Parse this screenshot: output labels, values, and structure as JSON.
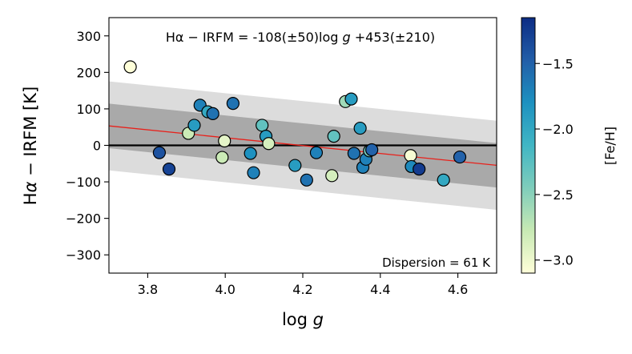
{
  "chart_data": {
    "type": "scatter",
    "title": "",
    "annotation": "Hα − IRFM = -108(±50)log g +453(±210)",
    "annotation_parts": [
      "Hα − IRFM = -108(±50)log ",
      "g",
      " +453(±210)"
    ],
    "dispersion_label": "Dispersion = 61 K",
    "xlabel": "log g",
    "xlabel_parts": [
      "log ",
      "g"
    ],
    "ylabel": "Hα − IRFM  [K]",
    "ylabel_parts": [
      "H",
      "α",
      " − IRFM  [K]"
    ],
    "colorbar_label": "[Fe/H]",
    "xlim": [
      3.7,
      4.7
    ],
    "ylim": [
      -350,
      350
    ],
    "xticks": [
      3.8,
      4.0,
      4.2,
      4.4,
      4.6
    ],
    "xtick_labels": [
      "3.8",
      "4.0",
      "4.2",
      "4.4",
      "4.6"
    ],
    "yticks": [
      -300,
      -200,
      -100,
      0,
      100,
      200,
      300
    ],
    "ytick_labels": [
      "−300",
      "−200",
      "−100",
      "0",
      "100",
      "200",
      "300"
    ],
    "colorbar_range": [
      -3.1,
      -1.15
    ],
    "colorbar_ticks": [
      -3.0,
      -2.5,
      -2.0,
      -1.5
    ],
    "colorbar_tick_labels": [
      "−3.0",
      "−2.5",
      "−2.0",
      "−1.5"
    ],
    "fit": {
      "slope": -108,
      "intercept": 453
    },
    "dispersion": 61,
    "bands": [
      {
        "name": "1-sigma",
        "halfwidth": 61,
        "color": "#a9a9a9"
      },
      {
        "name": "2-sigma",
        "halfwidth": 122,
        "color": "#dcdcdc"
      }
    ],
    "zero_line": 0,
    "fit_line_color": "#e8211b",
    "colormap": [
      "#ffffd9",
      "#c7e9b4",
      "#7fcdbb",
      "#41b6c4",
      "#1d91c0",
      "#225ea8",
      "#0c2c84"
    ],
    "points": [
      {
        "x": 3.755,
        "y": 215,
        "feh": -3.1
      },
      {
        "x": 3.83,
        "y": -20,
        "feh": -1.4
      },
      {
        "x": 3.855,
        "y": -65,
        "feh": -1.3
      },
      {
        "x": 3.905,
        "y": 33,
        "feh": -2.8
      },
      {
        "x": 3.92,
        "y": 55,
        "feh": -1.9
      },
      {
        "x": 3.935,
        "y": 110,
        "feh": -1.7
      },
      {
        "x": 3.955,
        "y": 92,
        "feh": -2.0
      },
      {
        "x": 3.968,
        "y": 87,
        "feh": -1.6
      },
      {
        "x": 3.992,
        "y": -33,
        "feh": -2.8
      },
      {
        "x": 3.998,
        "y": 12,
        "feh": -2.95
      },
      {
        "x": 4.02,
        "y": 115,
        "feh": -1.6
      },
      {
        "x": 4.065,
        "y": -22,
        "feh": -1.8
      },
      {
        "x": 4.073,
        "y": -75,
        "feh": -1.7
      },
      {
        "x": 4.095,
        "y": 55,
        "feh": -2.3
      },
      {
        "x": 4.105,
        "y": 25,
        "feh": -1.9
      },
      {
        "x": 4.112,
        "y": 5,
        "feh": -2.85
      },
      {
        "x": 4.18,
        "y": -55,
        "feh": -1.9
      },
      {
        "x": 4.21,
        "y": -95,
        "feh": -1.6
      },
      {
        "x": 4.235,
        "y": -20,
        "feh": -1.7
      },
      {
        "x": 4.275,
        "y": -83,
        "feh": -2.85
      },
      {
        "x": 4.28,
        "y": 25,
        "feh": -2.3
      },
      {
        "x": 4.31,
        "y": 120,
        "feh": -2.6
      },
      {
        "x": 4.325,
        "y": 127,
        "feh": -1.9
      },
      {
        "x": 4.332,
        "y": -22,
        "feh": -1.6
      },
      {
        "x": 4.348,
        "y": 47,
        "feh": -1.9
      },
      {
        "x": 4.355,
        "y": -60,
        "feh": -1.7
      },
      {
        "x": 4.363,
        "y": -38,
        "feh": -1.7
      },
      {
        "x": 4.372,
        "y": -15,
        "feh": -2.4
      },
      {
        "x": 4.378,
        "y": -12,
        "feh": -1.5
      },
      {
        "x": 4.478,
        "y": -28,
        "feh": -3.05
      },
      {
        "x": 4.48,
        "y": -58,
        "feh": -1.75
      },
      {
        "x": 4.5,
        "y": -65,
        "feh": -1.25
      },
      {
        "x": 4.563,
        "y": -95,
        "feh": -2.0
      },
      {
        "x": 4.605,
        "y": -32,
        "feh": -1.5
      }
    ]
  }
}
